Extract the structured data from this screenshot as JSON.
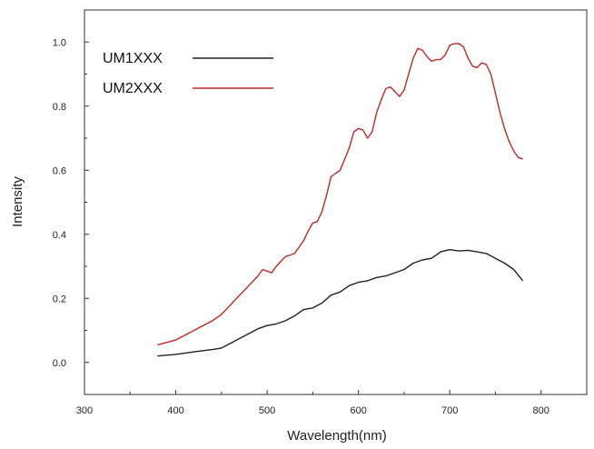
{
  "chart_data": {
    "type": "line",
    "title": "",
    "xlabel": "Wavelength(nm)",
    "ylabel": "Intensity",
    "xlim": [
      300,
      850
    ],
    "ylim": [
      -0.1,
      1.1
    ],
    "xticks": [
      300,
      400,
      500,
      600,
      700,
      800
    ],
    "yticks": [
      0.0,
      0.2,
      0.4,
      0.6,
      0.8,
      1.0
    ],
    "xtick_labels": [
      "300",
      "400",
      "500",
      "600",
      "700",
      "800"
    ],
    "ytick_labels": [
      "0.0",
      "0.2",
      "0.4",
      "0.6",
      "0.8",
      "1.0"
    ],
    "grid": false,
    "legend_position": "top-left",
    "series": [
      {
        "name": "UM1XXX",
        "color": "#222222",
        "x": [
          380,
          400,
          420,
          440,
          450,
          460,
          480,
          490,
          500,
          510,
          520,
          530,
          540,
          550,
          560,
          570,
          580,
          590,
          600,
          610,
          620,
          630,
          640,
          650,
          660,
          670,
          680,
          690,
          700,
          710,
          720,
          730,
          740,
          750,
          760,
          770,
          780
        ],
        "y": [
          0.02,
          0.025,
          0.033,
          0.04,
          0.045,
          0.06,
          0.09,
          0.105,
          0.115,
          0.12,
          0.13,
          0.145,
          0.165,
          0.17,
          0.185,
          0.21,
          0.22,
          0.24,
          0.25,
          0.255,
          0.265,
          0.27,
          0.28,
          0.29,
          0.31,
          0.32,
          0.325,
          0.345,
          0.352,
          0.348,
          0.35,
          0.345,
          0.34,
          0.325,
          0.31,
          0.29,
          0.255
        ]
      },
      {
        "name": "UM2XXX",
        "color": "#c0282a",
        "x": [
          380,
          400,
          420,
          440,
          450,
          460,
          470,
          480,
          490,
          495,
          500,
          505,
          510,
          520,
          530,
          540,
          545,
          550,
          555,
          560,
          565,
          570,
          575,
          580,
          590,
          595,
          600,
          605,
          610,
          615,
          620,
          625,
          630,
          635,
          640,
          645,
          650,
          655,
          660,
          665,
          670,
          675,
          680,
          685,
          690,
          695,
          700,
          705,
          710,
          715,
          720,
          725,
          730,
          735,
          740,
          745,
          750,
          755,
          760,
          765,
          770,
          775,
          780
        ],
        "y": [
          0.055,
          0.07,
          0.1,
          0.13,
          0.15,
          0.18,
          0.21,
          0.24,
          0.27,
          0.29,
          0.285,
          0.28,
          0.3,
          0.33,
          0.34,
          0.38,
          0.41,
          0.435,
          0.44,
          0.47,
          0.52,
          0.58,
          0.59,
          0.6,
          0.67,
          0.72,
          0.73,
          0.725,
          0.7,
          0.72,
          0.78,
          0.82,
          0.855,
          0.86,
          0.845,
          0.83,
          0.85,
          0.9,
          0.95,
          0.98,
          0.975,
          0.955,
          0.94,
          0.945,
          0.945,
          0.96,
          0.99,
          0.995,
          0.995,
          0.985,
          0.95,
          0.925,
          0.92,
          0.935,
          0.93,
          0.9,
          0.84,
          0.78,
          0.73,
          0.69,
          0.66,
          0.64,
          0.635
        ]
      }
    ]
  }
}
